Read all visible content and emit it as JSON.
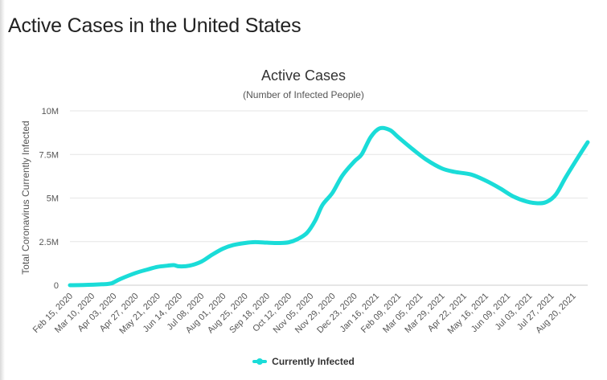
{
  "page": {
    "title": "Active Cases in the United States"
  },
  "colors": {
    "series": "#1adcd8",
    "grid": "#e6e6e6",
    "axis": "#cccccc"
  },
  "chart_data": {
    "type": "line",
    "title": "Active Cases",
    "subtitle": "(Number of Infected People)",
    "ylabel": "Total Coronavirus Currently Infected",
    "xlabel": "",
    "ylim": [
      0,
      10000000
    ],
    "y_ticks": [
      {
        "value": 0,
        "label": "0"
      },
      {
        "value": 2500000,
        "label": "2.5M"
      },
      {
        "value": 5000000,
        "label": "5M"
      },
      {
        "value": 7500000,
        "label": "7.5M"
      },
      {
        "value": 10000000,
        "label": "10M"
      }
    ],
    "x_range": [
      "2020-02-15",
      "2021-09-05"
    ],
    "x_tick_labels": [
      {
        "date": "2020-02-15",
        "label": "Feb 15, 2020"
      },
      {
        "date": "2020-03-10",
        "label": "Mar 10, 2020"
      },
      {
        "date": "2020-04-03",
        "label": "Apr 03, 2020"
      },
      {
        "date": "2020-04-27",
        "label": "Apr 27, 2020"
      },
      {
        "date": "2020-05-21",
        "label": "May 21, 2020"
      },
      {
        "date": "2020-06-14",
        "label": "Jun 14, 2020"
      },
      {
        "date": "2020-07-08",
        "label": "Jul 08, 2020"
      },
      {
        "date": "2020-08-01",
        "label": "Aug 01, 2020"
      },
      {
        "date": "2020-08-25",
        "label": "Aug 25, 2020"
      },
      {
        "date": "2020-09-18",
        "label": "Sep 18, 2020"
      },
      {
        "date": "2020-10-12",
        "label": "Oct 12, 2020"
      },
      {
        "date": "2020-11-05",
        "label": "Nov 05, 2020"
      },
      {
        "date": "2020-11-29",
        "label": "Nov 29, 2020"
      },
      {
        "date": "2020-12-23",
        "label": "Dec 23, 2020"
      },
      {
        "date": "2021-01-16",
        "label": "Jan 16, 2021"
      },
      {
        "date": "2021-02-09",
        "label": "Feb 09, 2021"
      },
      {
        "date": "2021-03-05",
        "label": "Mar 05, 2021"
      },
      {
        "date": "2021-03-29",
        "label": "Mar 29, 2021"
      },
      {
        "date": "2021-04-22",
        "label": "Apr 22, 2021"
      },
      {
        "date": "2021-05-16",
        "label": "May 16, 2021"
      },
      {
        "date": "2021-06-09",
        "label": "Jun 09, 2021"
      },
      {
        "date": "2021-07-03",
        "label": "Jul 03, 2021"
      },
      {
        "date": "2021-07-27",
        "label": "Jul 27, 2021"
      },
      {
        "date": "2021-08-20",
        "label": "Aug 20, 2021"
      }
    ],
    "grid": true,
    "legend_position": "bottom-center",
    "series": [
      {
        "name": "Currently Infected",
        "points": [
          [
            "2020-02-15",
            0
          ],
          [
            "2020-03-01",
            10000
          ],
          [
            "2020-03-20",
            50000
          ],
          [
            "2020-03-31",
            100000
          ],
          [
            "2020-04-10",
            350000
          ],
          [
            "2020-04-27",
            700000
          ],
          [
            "2020-05-10",
            900000
          ],
          [
            "2020-05-21",
            1050000
          ],
          [
            "2020-06-01",
            1120000
          ],
          [
            "2020-06-08",
            1150000
          ],
          [
            "2020-06-14",
            1080000
          ],
          [
            "2020-06-25",
            1120000
          ],
          [
            "2020-07-08",
            1350000
          ],
          [
            "2020-07-20",
            1750000
          ],
          [
            "2020-08-01",
            2100000
          ],
          [
            "2020-08-12",
            2300000
          ],
          [
            "2020-08-25",
            2420000
          ],
          [
            "2020-09-05",
            2470000
          ],
          [
            "2020-09-18",
            2440000
          ],
          [
            "2020-10-01",
            2420000
          ],
          [
            "2020-10-12",
            2460000
          ],
          [
            "2020-10-22",
            2650000
          ],
          [
            "2020-11-01",
            3000000
          ],
          [
            "2020-11-10",
            3700000
          ],
          [
            "2020-11-18",
            4600000
          ],
          [
            "2020-11-29",
            5300000
          ],
          [
            "2020-12-10",
            6300000
          ],
          [
            "2020-12-23",
            7100000
          ],
          [
            "2020-12-31",
            7500000
          ],
          [
            "2021-01-10",
            8500000
          ],
          [
            "2021-01-20",
            9000000
          ],
          [
            "2021-01-31",
            8900000
          ],
          [
            "2021-02-09",
            8500000
          ],
          [
            "2021-02-25",
            7800000
          ],
          [
            "2021-03-12",
            7200000
          ],
          [
            "2021-03-29",
            6700000
          ],
          [
            "2021-04-12",
            6500000
          ],
          [
            "2021-04-30",
            6350000
          ],
          [
            "2021-05-16",
            6000000
          ],
          [
            "2021-06-01",
            5550000
          ],
          [
            "2021-06-15",
            5100000
          ],
          [
            "2021-06-30",
            4800000
          ],
          [
            "2021-07-12",
            4700000
          ],
          [
            "2021-07-22",
            4780000
          ],
          [
            "2021-08-01",
            5200000
          ],
          [
            "2021-08-12",
            6200000
          ],
          [
            "2021-08-25",
            7300000
          ],
          [
            "2021-09-05",
            8200000
          ]
        ]
      }
    ]
  }
}
